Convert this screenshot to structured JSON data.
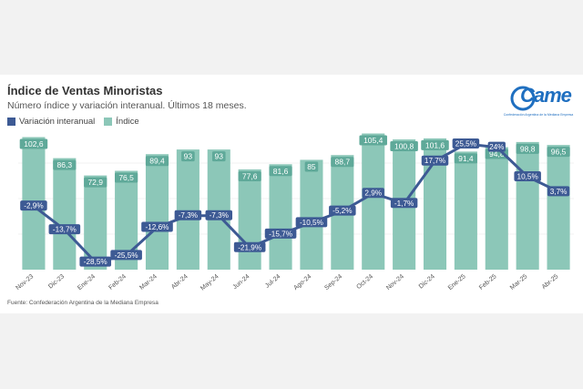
{
  "header": {
    "title": "Índice de Ventas Minoristas",
    "subtitle": "Número índice y variación interanual. Últimos 18 meses."
  },
  "legend": {
    "items": [
      {
        "label": "Variación interanual",
        "color": "#3d5a94"
      },
      {
        "label": "Índice",
        "color": "#8cc7b8"
      }
    ]
  },
  "logo": {
    "name": "Came",
    "tagline": "Confederación Argentina de la Mediana Empresa"
  },
  "source": "Fuente: Confederación Argentina de la Mediana Empresa",
  "colors": {
    "bar": "#8cc7b8",
    "line": "#3d5a94",
    "bar_label_bg": "#5fa999",
    "line_label_bg": "#3d5a94"
  },
  "chart_data": {
    "type": "bar",
    "categories": [
      "Nov-23",
      "Dic-23",
      "Ene-24",
      "Feb-24",
      "Mar-24",
      "Abr-24",
      "May-24",
      "Jun-24",
      "Jul-24",
      "Ago-24",
      "Sep-24",
      "Oct-24",
      "Nov-24",
      "Dic-24",
      "Ene-25",
      "Feb-25",
      "Mar-25",
      "Abr-25"
    ],
    "series": [
      {
        "name": "Índice",
        "type": "bar",
        "values": [
          102.6,
          86.3,
          72.9,
          76.5,
          89.4,
          93,
          93,
          77.6,
          81.6,
          85,
          88.7,
          105.4,
          100.8,
          101.6,
          91.4,
          94.8,
          98.8,
          96.5
        ],
        "labels": [
          "102,6",
          "86,3",
          "72,9",
          "76,5",
          "89,4",
          "93",
          "93",
          "77,6",
          "81,6",
          "85",
          "88,7",
          "105,4",
          "100,8",
          "101,6",
          "91,4",
          "94,8",
          "98,8",
          "96,5"
        ]
      },
      {
        "name": "Variación interanual",
        "type": "line",
        "values": [
          -2.9,
          -13.7,
          -28.5,
          -25.5,
          -12.6,
          -7.3,
          -7.3,
          -21.9,
          -15.7,
          -10.5,
          -5.2,
          2.9,
          -1.7,
          17.7,
          25.5,
          24,
          10.5,
          3.7
        ],
        "labels": [
          "-2,9%",
          "-13,7%",
          "-28,5%",
          "-25,5%",
          "-12,6%",
          "-7,3%",
          "-7,3%",
          "-21,9%",
          "-15,7%",
          "-10,5%",
          "-5,2%",
          "2,9%",
          "-1,7%",
          "17,7%",
          "25,5%",
          "24%",
          "10,5%",
          "3,7%"
        ]
      }
    ],
    "bar_ylim": [
      0,
      110
    ],
    "line_ylim": [
      -32,
      28
    ],
    "grid": true
  }
}
